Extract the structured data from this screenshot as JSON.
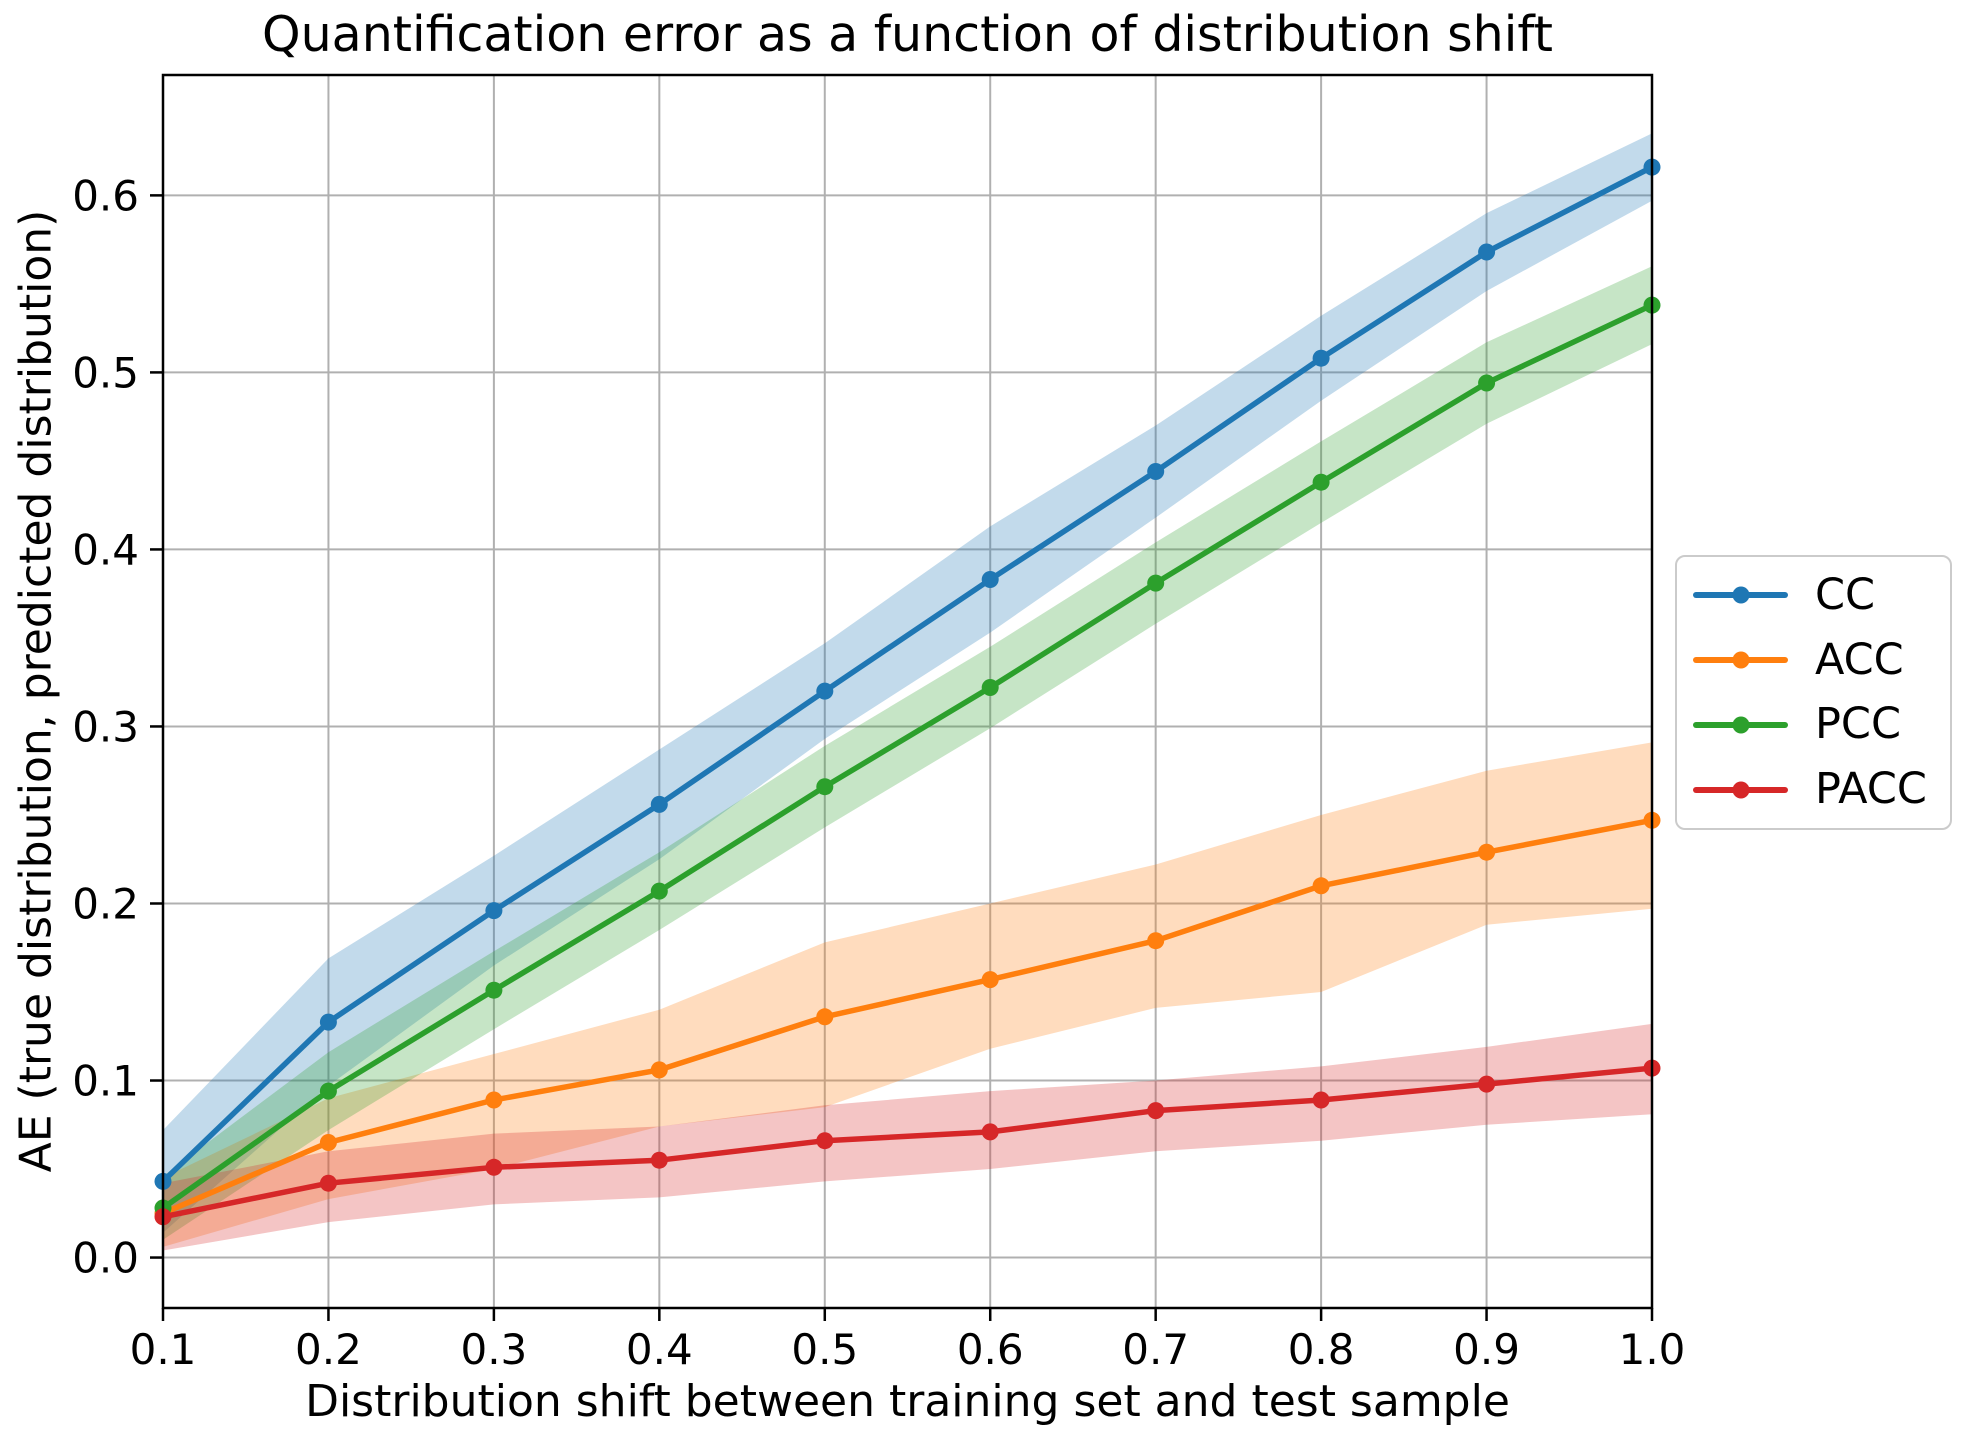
{
  "chart_data": {
    "type": "line",
    "title": "Quantification error as a function of distribution shift",
    "xlabel": "Distribution shift between training set and test sample",
    "ylabel": "AE (true distribution, predicted distribution)",
    "xlim": [
      0.1,
      1.0
    ],
    "ylim": [
      -0.0285,
      0.668
    ],
    "grid": true,
    "grid_color": "#b0b0b0",
    "axis_color": "#000000",
    "background_color": "#ffffff",
    "band_opacity": 0.27,
    "legend_position": "center-right-outside",
    "x": [
      0.1,
      0.2,
      0.3,
      0.4,
      0.5,
      0.6,
      0.7,
      0.8,
      0.9,
      1.0
    ],
    "x_tick_labels": [
      "0.1",
      "0.2",
      "0.3",
      "0.4",
      "0.5",
      "0.6",
      "0.7",
      "0.8",
      "0.9",
      "1.0"
    ],
    "x_tick_values": [
      0.1,
      0.2,
      0.3,
      0.4,
      0.5,
      0.6,
      0.7,
      0.8,
      0.9,
      1.0
    ],
    "y_tick_labels": [
      "0.0",
      "0.1",
      "0.2",
      "0.3",
      "0.4",
      "0.5",
      "0.6"
    ],
    "y_tick_values": [
      0.0,
      0.1,
      0.2,
      0.3,
      0.4,
      0.5,
      0.6
    ],
    "series": [
      {
        "name": "CC",
        "color": "#1f77b4",
        "values": [
          0.043,
          0.133,
          0.196,
          0.256,
          0.32,
          0.383,
          0.444,
          0.508,
          0.568,
          0.616
        ],
        "band_lower": [
          0.014,
          0.097,
          0.165,
          0.225,
          0.293,
          0.353,
          0.418,
          0.484,
          0.546,
          0.597
        ],
        "band_upper": [
          0.072,
          0.169,
          0.227,
          0.287,
          0.347,
          0.413,
          0.47,
          0.532,
          0.59,
          0.635
        ]
      },
      {
        "name": "ACC",
        "color": "#ff7f0e",
        "values": [
          0.025,
          0.065,
          0.089,
          0.106,
          0.136,
          0.157,
          0.179,
          0.21,
          0.229,
          0.247
        ],
        "band_lower": [
          0.006,
          0.033,
          0.05,
          0.074,
          0.085,
          0.118,
          0.141,
          0.15,
          0.188,
          0.197
        ],
        "band_upper": [
          0.045,
          0.09,
          0.115,
          0.14,
          0.178,
          0.2,
          0.222,
          0.25,
          0.275,
          0.291
        ]
      },
      {
        "name": "PCC",
        "color": "#2ca02c",
        "values": [
          0.028,
          0.094,
          0.151,
          0.207,
          0.266,
          0.322,
          0.381,
          0.438,
          0.494,
          0.538
        ],
        "band_lower": [
          0.01,
          0.072,
          0.129,
          0.185,
          0.243,
          0.299,
          0.358,
          0.415,
          0.471,
          0.516
        ],
        "band_upper": [
          0.046,
          0.116,
          0.173,
          0.229,
          0.289,
          0.345,
          0.404,
          0.461,
          0.517,
          0.56
        ]
      },
      {
        "name": "PACC",
        "color": "#d62728",
        "values": [
          0.023,
          0.042,
          0.051,
          0.055,
          0.066,
          0.071,
          0.083,
          0.089,
          0.098,
          0.107
        ],
        "band_lower": [
          0.004,
          0.02,
          0.03,
          0.034,
          0.043,
          0.05,
          0.06,
          0.066,
          0.075,
          0.081
        ],
        "band_upper": [
          0.042,
          0.06,
          0.07,
          0.074,
          0.086,
          0.094,
          0.1,
          0.108,
          0.119,
          0.132
        ]
      }
    ]
  }
}
